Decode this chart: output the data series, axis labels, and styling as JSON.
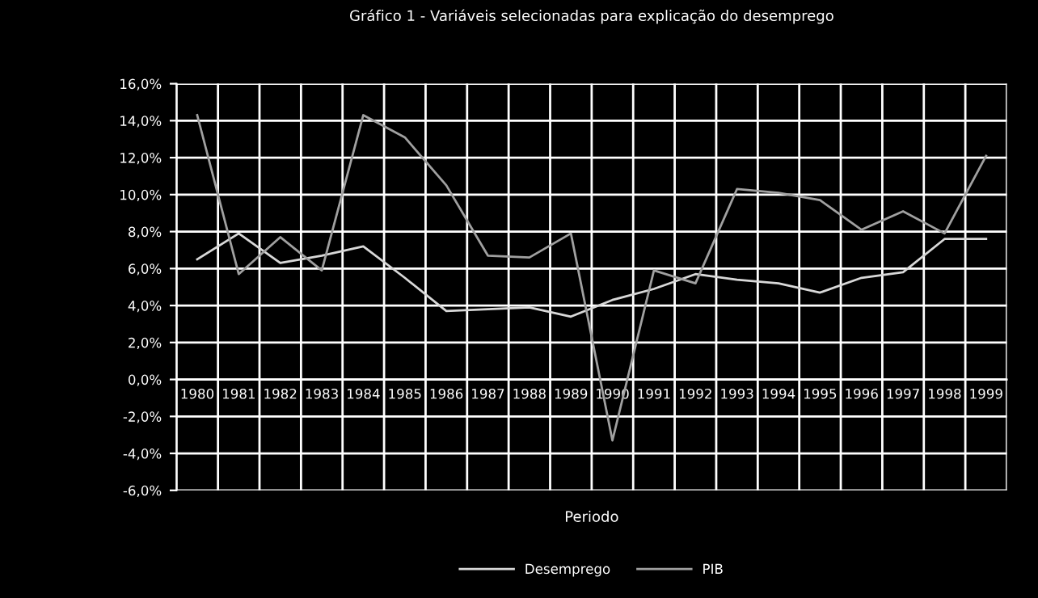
{
  "chart_data": {
    "type": "line",
    "title": "Gráfico 1 - Variáveis selecionadas para explicação do desemprego",
    "xlabel": "Periodo",
    "categories": [
      "1980",
      "1981",
      "1982",
      "1983",
      "1984",
      "1985",
      "1986",
      "1987",
      "1988",
      "1989",
      "1990",
      "1991",
      "1992",
      "1993",
      "1994",
      "1995",
      "1996",
      "1997",
      "1998",
      "1999"
    ],
    "series": [
      {
        "name": "Desemprego",
        "color": "#d8d8d8",
        "values": [
          6.5,
          7.9,
          6.3,
          6.7,
          7.2,
          5.5,
          3.7,
          3.8,
          3.9,
          3.4,
          4.3,
          4.9,
          5.7,
          5.4,
          5.2,
          4.7,
          5.5,
          5.8,
          7.6,
          7.6
        ]
      },
      {
        "name": "PIB",
        "color": "#a0a0a0",
        "values": [
          14.3,
          5.7,
          7.7,
          5.9,
          14.3,
          13.1,
          10.5,
          6.7,
          6.6,
          7.9,
          -3.3,
          5.9,
          5.2,
          10.3,
          10.1,
          9.7,
          8.1,
          9.1,
          7.9,
          12.1
        ]
      }
    ],
    "ylim": [
      -6,
      16
    ],
    "yticks": [
      {
        "value": -6,
        "label": "-6,0%"
      },
      {
        "value": -4,
        "label": "-4,0%"
      },
      {
        "value": -2,
        "label": "-2,0%"
      },
      {
        "value": 0,
        "label": "0,0%"
      },
      {
        "value": 2,
        "label": "2,0%"
      },
      {
        "value": 4,
        "label": "4,0%"
      },
      {
        "value": 6,
        "label": "6,0%"
      },
      {
        "value": 8,
        "label": "8,0%"
      },
      {
        "value": 10,
        "label": "10,0%"
      },
      {
        "value": 12,
        "label": "12,0%"
      },
      {
        "value": 14,
        "label": "14,0%"
      },
      {
        "value": 16,
        "label": "16,0%"
      }
    ],
    "grid": true,
    "legend": "bottom",
    "marker": "none",
    "line_style": "solid"
  }
}
